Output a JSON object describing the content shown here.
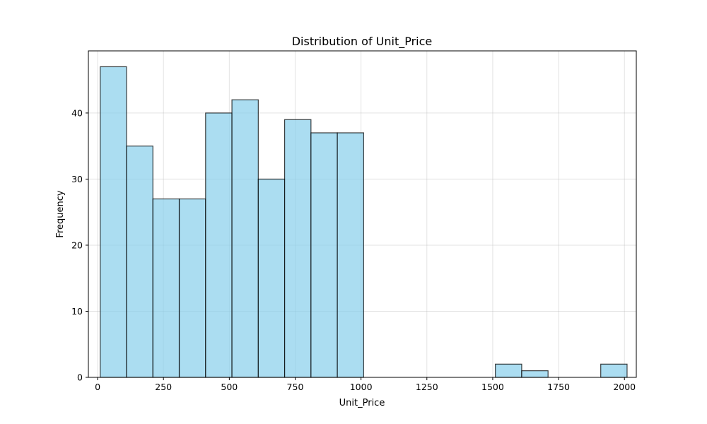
{
  "chart_data": {
    "type": "bar",
    "title": "Distribution of Unit_Price",
    "xlabel": "Unit_Price",
    "ylabel": "Frequency",
    "xlim": [
      -35,
      2045
    ],
    "ylim": [
      0,
      49.4
    ],
    "xticks": [
      0,
      250,
      500,
      750,
      1000,
      1250,
      1500,
      1750,
      2000
    ],
    "yticks": [
      0,
      10,
      20,
      30,
      40
    ],
    "grid": true,
    "bar_color": "#87ceeb",
    "bins": [
      {
        "start": 10,
        "end": 110,
        "value": 47
      },
      {
        "start": 110,
        "end": 210,
        "value": 35
      },
      {
        "start": 210,
        "end": 310,
        "value": 27
      },
      {
        "start": 310,
        "end": 410,
        "value": 27
      },
      {
        "start": 410,
        "end": 510,
        "value": 40
      },
      {
        "start": 510,
        "end": 610,
        "value": 42
      },
      {
        "start": 610,
        "end": 710,
        "value": 30
      },
      {
        "start": 710,
        "end": 810,
        "value": 39
      },
      {
        "start": 810,
        "end": 910,
        "value": 37
      },
      {
        "start": 910,
        "end": 1010,
        "value": 37
      },
      {
        "start": 1010,
        "end": 1110,
        "value": 0
      },
      {
        "start": 1110,
        "end": 1210,
        "value": 0
      },
      {
        "start": 1210,
        "end": 1310,
        "value": 0
      },
      {
        "start": 1310,
        "end": 1410,
        "value": 0
      },
      {
        "start": 1410,
        "end": 1510,
        "value": 0
      },
      {
        "start": 1510,
        "end": 1610,
        "value": 2
      },
      {
        "start": 1610,
        "end": 1710,
        "value": 1
      },
      {
        "start": 1710,
        "end": 1810,
        "value": 0
      },
      {
        "start": 1810,
        "end": 1910,
        "value": 0
      },
      {
        "start": 1910,
        "end": 2010,
        "value": 2
      }
    ]
  }
}
